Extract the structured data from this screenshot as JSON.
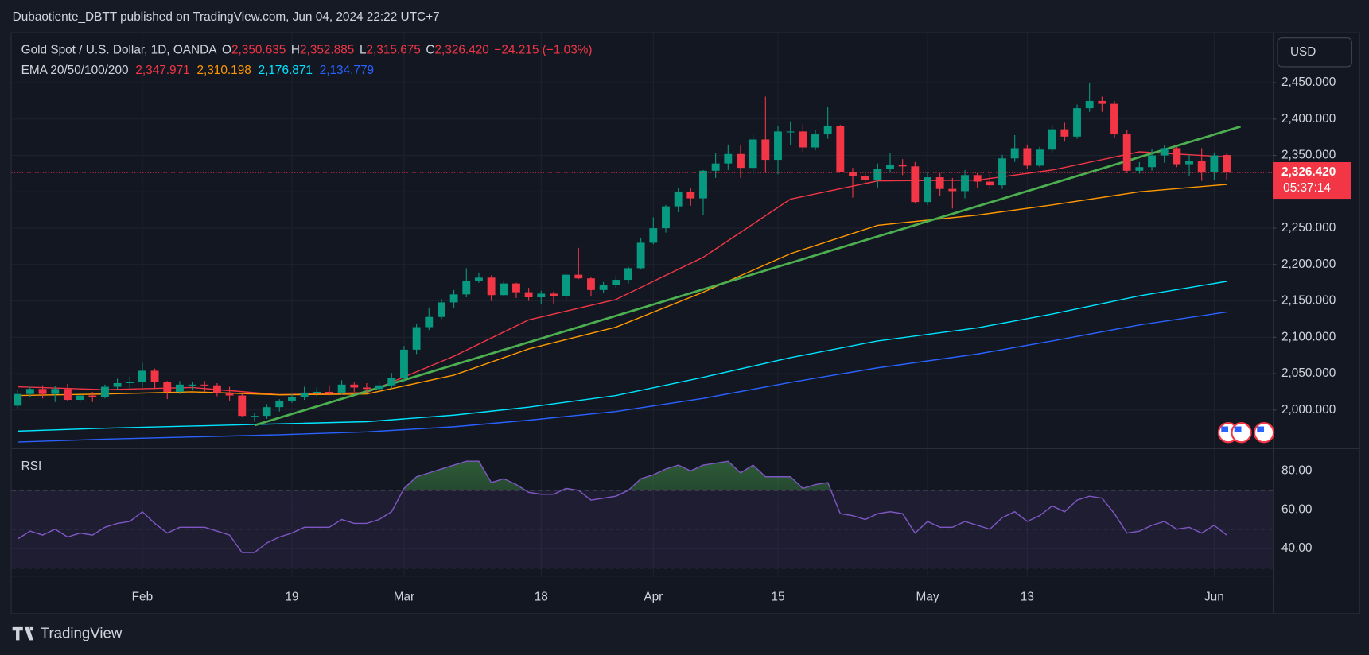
{
  "header": {
    "publisher": "Dubaotiente_DBTT published on TradingView.com, Jun 04, 2024 22:22 UTC+7",
    "brand": "TradingView"
  },
  "chart_data": {
    "type": "candlestick",
    "title": "Gold Spot / U.S. Dollar, 1D, OANDA",
    "currency": "USD",
    "up_color": "#089981",
    "down_color": "#f23645",
    "categories": [
      "2024-01-18",
      "2024-01-19",
      "2024-01-22",
      "2024-01-23",
      "2024-01-24",
      "2024-01-25",
      "2024-01-26",
      "2024-01-29",
      "2024-01-30",
      "2024-01-31",
      "2024-02-01",
      "2024-02-02",
      "2024-02-05",
      "2024-02-06",
      "2024-02-07",
      "2024-02-08",
      "2024-02-09",
      "2024-02-12",
      "2024-02-13",
      "2024-02-14",
      "2024-02-15",
      "2024-02-16",
      "2024-02-19",
      "2024-02-20",
      "2024-02-21",
      "2024-02-22",
      "2024-02-23",
      "2024-02-26",
      "2024-02-27",
      "2024-02-28",
      "2024-02-29",
      "2024-03-01",
      "2024-03-04",
      "2024-03-05",
      "2024-03-06",
      "2024-03-07",
      "2024-03-08",
      "2024-03-11",
      "2024-03-12",
      "2024-03-13",
      "2024-03-14",
      "2024-03-15",
      "2024-03-18",
      "2024-03-19",
      "2024-03-20",
      "2024-03-21",
      "2024-03-22",
      "2024-03-25",
      "2024-03-26",
      "2024-03-27",
      "2024-03-28",
      "2024-04-01",
      "2024-04-02",
      "2024-04-03",
      "2024-04-04",
      "2024-04-05",
      "2024-04-08",
      "2024-04-09",
      "2024-04-10",
      "2024-04-11",
      "2024-04-12",
      "2024-04-15",
      "2024-04-16",
      "2024-04-17",
      "2024-04-18",
      "2024-04-19",
      "2024-04-22",
      "2024-04-23",
      "2024-04-24",
      "2024-04-25",
      "2024-04-26",
      "2024-04-29",
      "2024-04-30",
      "2024-05-01",
      "2024-05-02",
      "2024-05-03",
      "2024-05-06",
      "2024-05-07",
      "2024-05-08",
      "2024-05-09",
      "2024-05-10",
      "2024-05-13",
      "2024-05-14",
      "2024-05-15",
      "2024-05-16",
      "2024-05-17",
      "2024-05-20",
      "2024-05-21",
      "2024-05-22",
      "2024-05-23",
      "2024-05-24",
      "2024-05-27",
      "2024-05-28",
      "2024-05-29",
      "2024-05-30",
      "2024-05-31",
      "2024-06-03",
      "2024-06-04"
    ],
    "candles": [
      [
        2006,
        2028,
        2001,
        2022
      ],
      [
        2022,
        2032,
        2017,
        2029
      ],
      [
        2029,
        2034,
        2016,
        2022
      ],
      [
        2022,
        2033,
        2011,
        2029
      ],
      [
        2029,
        2036,
        2013,
        2014
      ],
      [
        2014,
        2024,
        2010,
        2020
      ],
      [
        2020,
        2025,
        2011,
        2018
      ],
      [
        2018,
        2035,
        2016,
        2032
      ],
      [
        2032,
        2043,
        2027,
        2037
      ],
      [
        2037,
        2046,
        2028,
        2039
      ],
      [
        2039,
        2065,
        2031,
        2054
      ],
      [
        2054,
        2057,
        2029,
        2039
      ],
      [
        2039,
        2040,
        2015,
        2025
      ],
      [
        2025,
        2040,
        2022,
        2035
      ],
      [
        2035,
        2039,
        2027,
        2035
      ],
      [
        2035,
        2040,
        2025,
        2034
      ],
      [
        2034,
        2037,
        2019,
        2024
      ],
      [
        2024,
        2032,
        2013,
        2020
      ],
      [
        2020,
        2022,
        1990,
        1992
      ],
      [
        1992,
        1996,
        1984,
        1992
      ],
      [
        1992,
        2008,
        1988,
        2004
      ],
      [
        2004,
        2015,
        1998,
        2013
      ],
      [
        2013,
        2022,
        2010,
        2018
      ],
      [
        2018,
        2032,
        2014,
        2024
      ],
      [
        2024,
        2031,
        2018,
        2025
      ],
      [
        2025,
        2034,
        2020,
        2024
      ],
      [
        2024,
        2041,
        2021,
        2035
      ],
      [
        2035,
        2038,
        2025,
        2031
      ],
      [
        2031,
        2037,
        2025,
        2029
      ],
      [
        2029,
        2040,
        2024,
        2034
      ],
      [
        2034,
        2051,
        2030,
        2044
      ],
      [
        2044,
        2088,
        2039,
        2083
      ],
      [
        2083,
        2119,
        2077,
        2114
      ],
      [
        2114,
        2141,
        2110,
        2128
      ],
      [
        2128,
        2153,
        2125,
        2148
      ],
      [
        2148,
        2165,
        2141,
        2159
      ],
      [
        2159,
        2195,
        2155,
        2178
      ],
      [
        2178,
        2189,
        2175,
        2182
      ],
      [
        2182,
        2185,
        2150,
        2158
      ],
      [
        2158,
        2178,
        2156,
        2174
      ],
      [
        2174,
        2175,
        2154,
        2162
      ],
      [
        2162,
        2168,
        2150,
        2155
      ],
      [
        2155,
        2164,
        2146,
        2160
      ],
      [
        2160,
        2163,
        2146,
        2157
      ],
      [
        2157,
        2188,
        2152,
        2186
      ],
      [
        2186,
        2223,
        2180,
        2181
      ],
      [
        2181,
        2183,
        2156,
        2165
      ],
      [
        2165,
        2176,
        2161,
        2172
      ],
      [
        2172,
        2184,
        2168,
        2179
      ],
      [
        2179,
        2197,
        2174,
        2195
      ],
      [
        2195,
        2236,
        2193,
        2230
      ],
      [
        2230,
        2265,
        2228,
        2250
      ],
      [
        2250,
        2282,
        2244,
        2280
      ],
      [
        2280,
        2305,
        2272,
        2300
      ],
      [
        2300,
        2305,
        2281,
        2291
      ],
      [
        2291,
        2330,
        2268,
        2329
      ],
      [
        2329,
        2353,
        2319,
        2339
      ],
      [
        2339,
        2365,
        2330,
        2352
      ],
      [
        2352,
        2365,
        2319,
        2333
      ],
      [
        2333,
        2378,
        2324,
        2372
      ],
      [
        2372,
        2431,
        2326,
        2344
      ],
      [
        2344,
        2390,
        2324,
        2383
      ],
      [
        2383,
        2397,
        2364,
        2383
      ],
      [
        2383,
        2393,
        2355,
        2361
      ],
      [
        2361,
        2385,
        2357,
        2379
      ],
      [
        2379,
        2417,
        2373,
        2391
      ],
      [
        2391,
        2392,
        2328,
        2327
      ],
      [
        2327,
        2333,
        2292,
        2322
      ],
      [
        2322,
        2328,
        2310,
        2316
      ],
      [
        2316,
        2339,
        2306,
        2332
      ],
      [
        2332,
        2353,
        2326,
        2337
      ],
      [
        2337,
        2345,
        2323,
        2335
      ],
      [
        2335,
        2341,
        2285,
        2286
      ],
      [
        2286,
        2327,
        2282,
        2320
      ],
      [
        2320,
        2326,
        2294,
        2304
      ],
      [
        2304,
        2319,
        2277,
        2301
      ],
      [
        2301,
        2330,
        2291,
        2323
      ],
      [
        2323,
        2326,
        2306,
        2314
      ],
      [
        2314,
        2325,
        2303,
        2309
      ],
      [
        2309,
        2351,
        2304,
        2346
      ],
      [
        2346,
        2378,
        2341,
        2360
      ],
      [
        2360,
        2365,
        2332,
        2336
      ],
      [
        2336,
        2362,
        2334,
        2358
      ],
      [
        2358,
        2392,
        2354,
        2386
      ],
      [
        2386,
        2395,
        2369,
        2376
      ],
      [
        2376,
        2420,
        2373,
        2415
      ],
      [
        2415,
        2450,
        2410,
        2425
      ],
      [
        2425,
        2431,
        2410,
        2421
      ],
      [
        2421,
        2425,
        2374,
        2379
      ],
      [
        2379,
        2385,
        2326,
        2329
      ],
      [
        2329,
        2341,
        2325,
        2334
      ],
      [
        2334,
        2359,
        2329,
        2350
      ],
      [
        2350,
        2364,
        2340,
        2360
      ],
      [
        2360,
        2362,
        2334,
        2338
      ],
      [
        2338,
        2351,
        2322,
        2343
      ],
      [
        2343,
        2360,
        2315,
        2327
      ],
      [
        2327,
        2354,
        2316,
        2350
      ],
      [
        2350.635,
        2352.885,
        2315.675,
        2326.42
      ]
    ],
    "ohlc_prefixes": [
      "O",
      "H",
      "L",
      "C"
    ],
    "ohlc_labels": [
      "2,350.635",
      "2,352.885",
      "2,315.675",
      "2,326.420"
    ],
    "change": -24.215,
    "change_label": "−24.215",
    "change_pct": -1.03,
    "change_pct_label": "(−1.03%)",
    "last_price_label": "2,326.420",
    "countdown": "05:37:14",
    "ylim": [
      1948.6,
      2518.2
    ],
    "yticks": [
      {
        "value": 2000,
        "label": "2,000.000"
      },
      {
        "value": 2050,
        "label": "2,050.000"
      },
      {
        "value": 2100,
        "label": "2,100.000"
      },
      {
        "value": 2150,
        "label": "2,150.000"
      },
      {
        "value": 2200,
        "label": "2,200.000"
      },
      {
        "value": 2250,
        "label": "2,250.000"
      },
      {
        "value": 2300,
        "label": "2,300.000"
      },
      {
        "value": 2350,
        "label": "2,350.000"
      },
      {
        "value": 2400,
        "label": "2,400.000"
      },
      {
        "value": 2450,
        "label": "2,450.000"
      }
    ],
    "xticks": [
      {
        "value": "2024-02-01",
        "label": "Feb"
      },
      {
        "value": "2024-02-19",
        "label": "19"
      },
      {
        "value": "2024-03-01",
        "label": "Mar"
      },
      {
        "value": "2024-03-18",
        "label": "18"
      },
      {
        "value": "2024-04-01",
        "label": "Apr"
      },
      {
        "value": "2024-04-15",
        "label": "15"
      },
      {
        "value": "2024-05-01",
        "label": "May"
      },
      {
        "value": "2024-05-13",
        "label": "13"
      },
      {
        "value": "2024-06-03",
        "label": "Jun"
      }
    ],
    "grid": true,
    "ema_title": "EMA 20/50/100/200",
    "emas": [
      {
        "color": "#f23645",
        "x": [
          "2024-01-18",
          "2024-01-29",
          "2024-02-07",
          "2024-02-16",
          "2024-02-27",
          "2024-03-07",
          "2024-03-15",
          "2024-03-26",
          "2024-04-05",
          "2024-04-16",
          "2024-04-25",
          "2024-05-07",
          "2024-05-15",
          "2024-05-24",
          "2024-06-04"
        ],
        "values": [
          2032,
          2028,
          2031,
          2021,
          2024,
          2074,
          2124,
          2152,
          2210,
          2290,
          2315,
          2316,
          2330,
          2355,
          2347.971
        ],
        "value_label": "2,347.971"
      },
      {
        "color": "#ff9800",
        "x": [
          "2024-01-18",
          "2024-01-29",
          "2024-02-07",
          "2024-02-16",
          "2024-02-27",
          "2024-03-07",
          "2024-03-15",
          "2024-03-26",
          "2024-04-05",
          "2024-04-16",
          "2024-04-25",
          "2024-05-07",
          "2024-05-15",
          "2024-05-24",
          "2024-06-04"
        ],
        "values": [
          2020,
          2022,
          2025,
          2021,
          2022,
          2048,
          2084,
          2114,
          2162,
          2215,
          2254,
          2268,
          2282,
          2300,
          2310.198
        ],
        "value_label": "2,310.198"
      },
      {
        "color": "#00e5ff",
        "x": [
          "2024-01-18",
          "2024-01-29",
          "2024-02-07",
          "2024-02-16",
          "2024-02-27",
          "2024-03-07",
          "2024-03-15",
          "2024-03-26",
          "2024-04-05",
          "2024-04-16",
          "2024-04-25",
          "2024-05-07",
          "2024-05-15",
          "2024-05-24",
          "2024-06-04"
        ],
        "values": [
          1971,
          1975,
          1978,
          1981,
          1984,
          1993,
          2004,
          2020,
          2045,
          2072,
          2095,
          2113,
          2132,
          2157,
          2176.871
        ],
        "value_label": "2,176.871"
      },
      {
        "color": "#2962ff",
        "x": [
          "2024-01-18",
          "2024-01-29",
          "2024-02-07",
          "2024-02-16",
          "2024-02-27",
          "2024-03-07",
          "2024-03-15",
          "2024-03-26",
          "2024-04-05",
          "2024-04-16",
          "2024-04-25",
          "2024-05-07",
          "2024-05-15",
          "2024-05-24",
          "2024-06-04"
        ],
        "values": [
          1956,
          1960,
          1963,
          1966,
          1970,
          1977,
          1986,
          1998,
          2016,
          2038,
          2058,
          2077,
          2095,
          2117,
          2134.779
        ],
        "value_label": "2,134.779"
      }
    ],
    "trendline": {
      "color": "#4caf50",
      "x": [
        "2024-02-14",
        "2024-06-04"
      ],
      "values": [
        1979,
        2384
      ]
    },
    "rsi": {
      "title": "RSI",
      "color": "#7e57c2",
      "values": [
        45,
        49,
        47,
        50,
        46,
        48,
        47,
        51,
        53,
        54,
        59,
        53,
        48,
        51,
        51,
        51,
        49,
        47,
        38,
        38,
        43,
        46,
        48,
        51,
        51,
        51,
        55,
        53,
        53,
        55,
        59,
        71,
        77,
        79,
        81,
        83,
        85,
        85,
        74,
        76,
        73,
        69,
        68,
        68,
        71,
        70,
        65,
        66,
        67,
        70,
        76,
        78,
        81,
        83,
        80,
        83,
        84,
        85,
        79,
        83,
        77,
        77,
        77,
        71,
        73,
        74,
        58,
        57,
        55,
        58,
        59,
        58,
        48,
        54,
        51,
        51,
        54,
        52,
        50,
        56,
        59,
        54,
        57,
        62,
        59,
        65,
        67,
        66,
        58,
        48,
        49,
        52,
        54,
        50,
        51,
        48,
        52,
        47
      ],
      "ylim": [
        26.1,
        91.2
      ],
      "yticks": [
        {
          "value": 40,
          "label": "40.00"
        },
        {
          "value": 60,
          "label": "60.00"
        },
        {
          "value": 80,
          "label": "80.00"
        }
      ],
      "levels": [
        30,
        50,
        70
      ]
    }
  }
}
